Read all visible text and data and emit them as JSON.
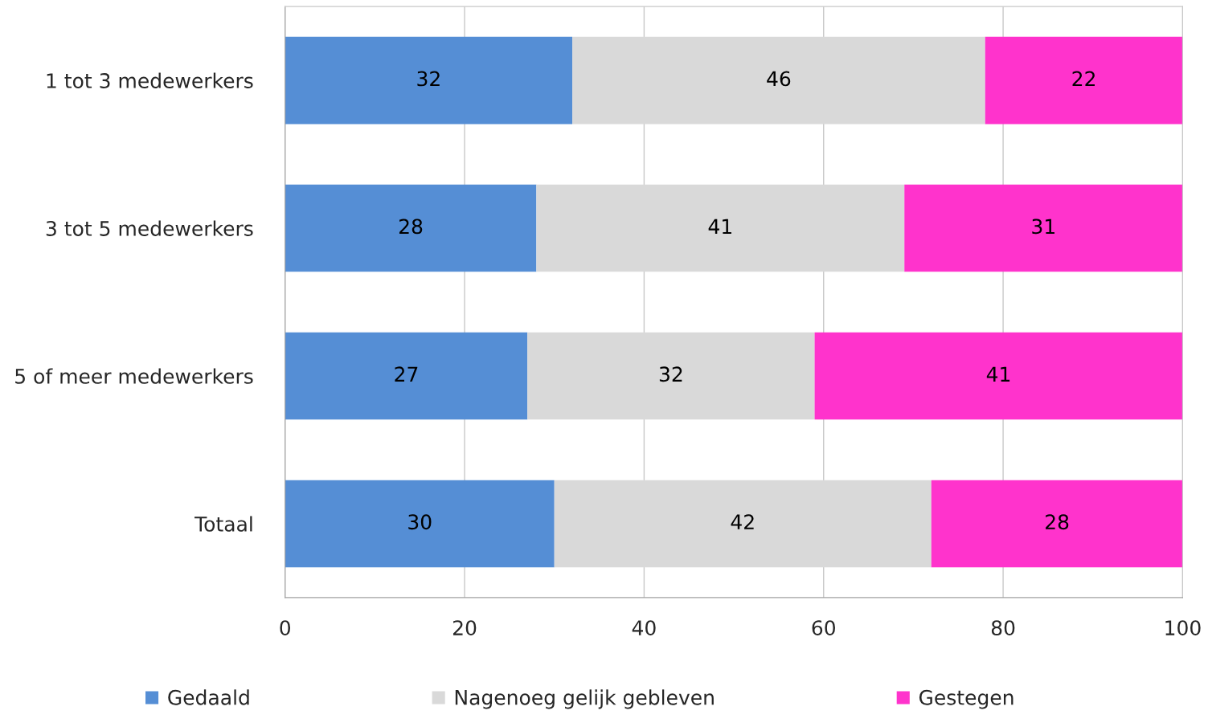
{
  "chart_data": {
    "type": "bar",
    "orientation": "horizontal",
    "stacked": true,
    "categories": [
      "1 tot 3 medewerkers",
      "3 tot 5 medewerkers",
      "5 of meer medewerkers",
      "Totaal"
    ],
    "series": [
      {
        "name": "Gedaald",
        "color": "#558ed5",
        "values": [
          32,
          28,
          27,
          30
        ]
      },
      {
        "name": "Nagenoeg gelijk gebleven",
        "color": "#d9d9d9",
        "values": [
          46,
          41,
          32,
          42
        ]
      },
      {
        "name": "Gestegen",
        "color": "#ff33cc",
        "values": [
          22,
          31,
          41,
          28
        ]
      }
    ],
    "xlim": [
      0,
      100
    ],
    "xticks": [
      0,
      20,
      40,
      60,
      80,
      100
    ],
    "grid": "x",
    "legend": "bottom",
    "data_labels": true
  }
}
